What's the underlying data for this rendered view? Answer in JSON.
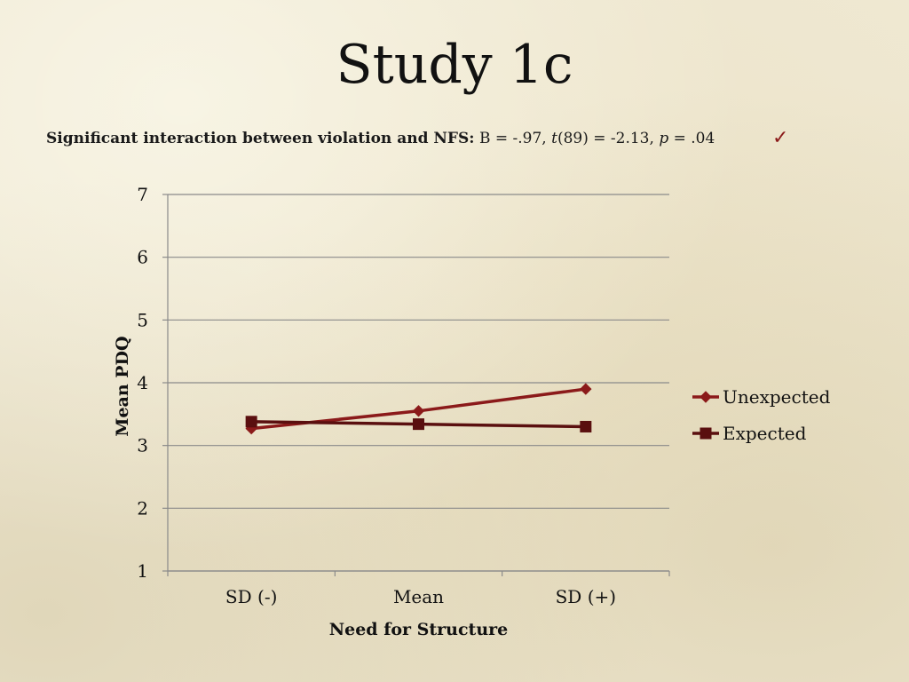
{
  "slide": {
    "title": "Study 1c",
    "stats": {
      "lead": "Significant interaction between violation and NFS:",
      "b_part": " B = -.97, ",
      "t_symbol": "t",
      "t_part": "(89) = -2.13, ",
      "p_symbol": "p",
      "p_part": " = .04",
      "check_glyph": "✓"
    }
  },
  "chart_data": {
    "type": "line",
    "categories": [
      "SD (-)",
      "Mean",
      "SD (+)"
    ],
    "xlabel": "Need for Structure",
    "ylabel": "Mean PDQ",
    "ylim": [
      1,
      7
    ],
    "yticks": [
      1,
      2,
      3,
      4,
      5,
      6,
      7
    ],
    "grid": true,
    "legend_position": "right",
    "series": [
      {
        "name": "Unexpected",
        "values": [
          3.27,
          3.55,
          3.9
        ],
        "color": "#8b1a1a",
        "marker": "diamond"
      },
      {
        "name": "Expected",
        "values": [
          3.38,
          3.34,
          3.3
        ],
        "color": "#5a0f0f",
        "marker": "square"
      }
    ]
  }
}
